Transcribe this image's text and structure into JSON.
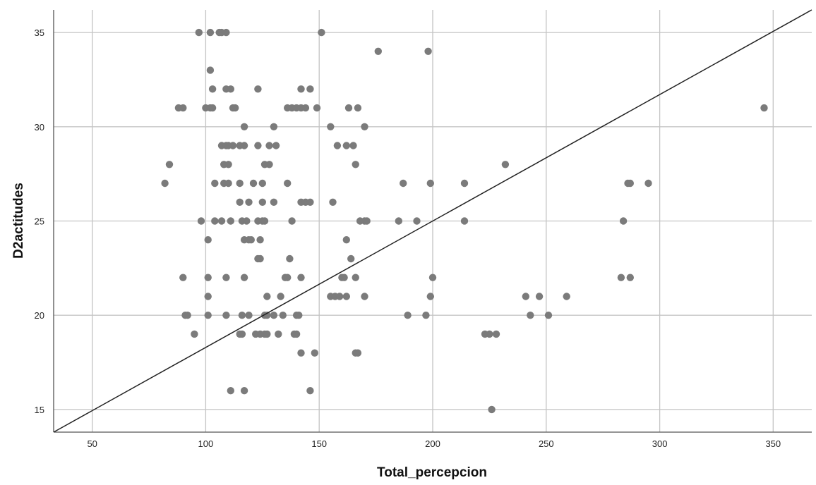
{
  "chart_data": {
    "type": "scatter",
    "xlabel": "Total_percepcion",
    "ylabel": "D2actitudes",
    "xlim": [
      33,
      367
    ],
    "ylim": [
      13.8,
      36.2
    ],
    "xticks": [
      50,
      100,
      150,
      200,
      250,
      300,
      350
    ],
    "yticks": [
      15,
      20,
      25,
      30,
      35
    ],
    "grid": true,
    "point_color": "#7b7b7b",
    "line_color": "#222222",
    "reference_line": {
      "x": [
        33,
        367
      ],
      "y": [
        13.8,
        36.2
      ]
    },
    "points": [
      [
        97,
        35
      ],
      [
        102,
        35
      ],
      [
        106,
        35
      ],
      [
        107,
        35
      ],
      [
        109,
        35
      ],
      [
        151,
        35
      ],
      [
        176,
        34
      ],
      [
        198,
        34
      ],
      [
        102,
        33
      ],
      [
        103,
        32
      ],
      [
        109,
        32
      ],
      [
        111,
        32
      ],
      [
        123,
        32
      ],
      [
        142,
        32
      ],
      [
        146,
        32
      ],
      [
        88,
        31
      ],
      [
        90,
        31
      ],
      [
        100,
        31
      ],
      [
        102,
        31
      ],
      [
        103,
        31
      ],
      [
        112,
        31
      ],
      [
        113,
        31
      ],
      [
        136,
        31
      ],
      [
        138,
        31
      ],
      [
        140,
        31
      ],
      [
        142,
        31
      ],
      [
        144,
        31
      ],
      [
        149,
        31
      ],
      [
        163,
        31
      ],
      [
        167,
        31
      ],
      [
        346,
        31
      ],
      [
        117,
        30
      ],
      [
        130,
        30
      ],
      [
        155,
        30
      ],
      [
        170,
        30
      ],
      [
        107,
        29
      ],
      [
        109,
        29
      ],
      [
        110,
        29
      ],
      [
        112,
        29
      ],
      [
        115,
        29
      ],
      [
        117,
        29
      ],
      [
        123,
        29
      ],
      [
        128,
        29
      ],
      [
        131,
        29
      ],
      [
        158,
        29
      ],
      [
        162,
        29
      ],
      [
        165,
        29
      ],
      [
        84,
        28
      ],
      [
        108,
        28
      ],
      [
        110,
        28
      ],
      [
        126,
        28
      ],
      [
        128,
        28
      ],
      [
        166,
        28
      ],
      [
        232,
        28
      ],
      [
        82,
        27
      ],
      [
        104,
        27
      ],
      [
        108,
        27
      ],
      [
        110,
        27
      ],
      [
        115,
        27
      ],
      [
        121,
        27
      ],
      [
        125,
        27
      ],
      [
        136,
        27
      ],
      [
        187,
        27
      ],
      [
        199,
        27
      ],
      [
        214,
        27
      ],
      [
        286,
        27
      ],
      [
        287,
        27
      ],
      [
        295,
        27
      ],
      [
        115,
        26
      ],
      [
        119,
        26
      ],
      [
        125,
        26
      ],
      [
        130,
        26
      ],
      [
        142,
        26
      ],
      [
        144,
        26
      ],
      [
        146,
        26
      ],
      [
        156,
        26
      ],
      [
        98,
        25
      ],
      [
        104,
        25
      ],
      [
        107,
        25
      ],
      [
        111,
        25
      ],
      [
        116,
        25
      ],
      [
        118,
        25
      ],
      [
        123,
        25
      ],
      [
        125,
        25
      ],
      [
        126,
        25
      ],
      [
        138,
        25
      ],
      [
        168,
        25
      ],
      [
        170,
        25
      ],
      [
        171,
        25
      ],
      [
        185,
        25
      ],
      [
        193,
        25
      ],
      [
        214,
        25
      ],
      [
        284,
        25
      ],
      [
        101,
        24
      ],
      [
        117,
        24
      ],
      [
        119,
        24
      ],
      [
        120,
        24
      ],
      [
        124,
        24
      ],
      [
        162,
        24
      ],
      [
        123,
        23
      ],
      [
        124,
        23
      ],
      [
        137,
        23
      ],
      [
        164,
        23
      ],
      [
        90,
        22
      ],
      [
        101,
        22
      ],
      [
        109,
        22
      ],
      [
        117,
        22
      ],
      [
        135,
        22
      ],
      [
        136,
        22
      ],
      [
        142,
        22
      ],
      [
        160,
        22
      ],
      [
        161,
        22
      ],
      [
        166,
        22
      ],
      [
        200,
        22
      ],
      [
        283,
        22
      ],
      [
        287,
        22
      ],
      [
        101,
        21
      ],
      [
        127,
        21
      ],
      [
        133,
        21
      ],
      [
        155,
        21
      ],
      [
        157,
        21
      ],
      [
        159,
        21
      ],
      [
        162,
        21
      ],
      [
        170,
        21
      ],
      [
        199,
        21
      ],
      [
        241,
        21
      ],
      [
        247,
        21
      ],
      [
        259,
        21
      ],
      [
        91,
        20
      ],
      [
        92,
        20
      ],
      [
        101,
        20
      ],
      [
        109,
        20
      ],
      [
        116,
        20
      ],
      [
        119,
        20
      ],
      [
        126,
        20
      ],
      [
        127,
        20
      ],
      [
        130,
        20
      ],
      [
        134,
        20
      ],
      [
        140,
        20
      ],
      [
        141,
        20
      ],
      [
        189,
        20
      ],
      [
        197,
        20
      ],
      [
        243,
        20
      ],
      [
        251,
        20
      ],
      [
        95,
        19
      ],
      [
        115,
        19
      ],
      [
        116,
        19
      ],
      [
        122,
        19
      ],
      [
        124,
        19
      ],
      [
        126,
        19
      ],
      [
        127,
        19
      ],
      [
        132,
        19
      ],
      [
        139,
        19
      ],
      [
        140,
        19
      ],
      [
        223,
        19
      ],
      [
        225,
        19
      ],
      [
        228,
        19
      ],
      [
        142,
        18
      ],
      [
        148,
        18
      ],
      [
        166,
        18
      ],
      [
        167,
        18
      ],
      [
        111,
        16
      ],
      [
        117,
        16
      ],
      [
        146,
        16
      ],
      [
        226,
        15
      ]
    ]
  }
}
